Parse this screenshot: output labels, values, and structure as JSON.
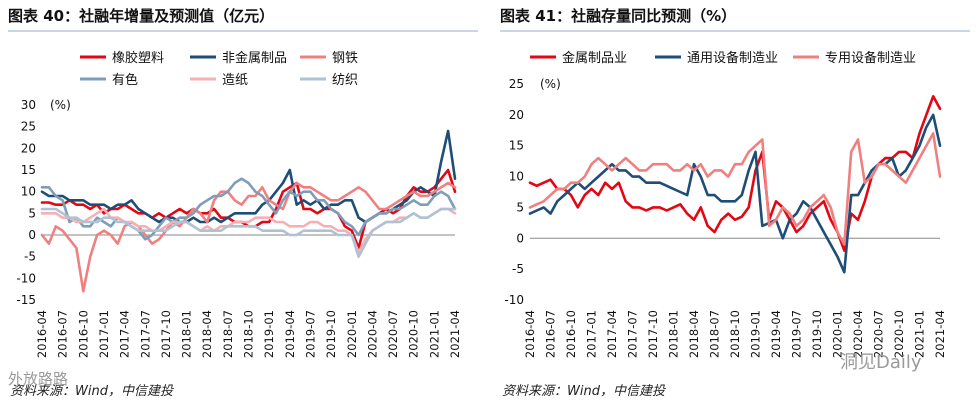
{
  "left": {
    "title": "图表 40：社融年增量及预测值（亿元）",
    "source": "资料来源：Wind，中信建投"
  },
  "right": {
    "title": "图表 41：社融存量同比预测（%）",
    "source": "资料来源：Wind，中信建投"
  },
  "watermarks": {
    "left": "外放路路",
    "right": "洞见Daily"
  },
  "chart_data": [
    {
      "type": "line",
      "title": "图表 40：社融年增量及预测值（亿元）",
      "ylabel": "(%)",
      "ylim": [
        -15,
        30
      ],
      "yticks": [
        -15,
        -10,
        -5,
        0,
        5,
        10,
        15,
        20,
        25,
        30
      ],
      "x": [
        "2016-04",
        "2016-05",
        "2016-06",
        "2016-07",
        "2016-08",
        "2016-09",
        "2016-10",
        "2016-11",
        "2016-12",
        "2017-01",
        "2017-02",
        "2017-03",
        "2017-04",
        "2017-05",
        "2017-06",
        "2017-07",
        "2017-08",
        "2017-09",
        "2017-10",
        "2017-11",
        "2017-12",
        "2018-01",
        "2018-02",
        "2018-03",
        "2018-04",
        "2018-05",
        "2018-06",
        "2018-07",
        "2018-08",
        "2018-09",
        "2018-10",
        "2018-11",
        "2018-12",
        "2019-01",
        "2019-02",
        "2019-03",
        "2019-04",
        "2019-05",
        "2019-06",
        "2019-07",
        "2019-08",
        "2019-09",
        "2019-10",
        "2019-11",
        "2019-12",
        "2020-01",
        "2020-02",
        "2020-03",
        "2020-04",
        "2020-05",
        "2020-06",
        "2020-07",
        "2020-08",
        "2020-09",
        "2020-10",
        "2020-11",
        "2020-12",
        "2021-01",
        "2021-02",
        "2021-03",
        "2021-04"
      ],
      "xticks": [
        "2016-04",
        "2016-07",
        "2016-10",
        "2017-01",
        "2017-04",
        "2017-07",
        "2017-10",
        "2018-01",
        "2018-04",
        "2018-07",
        "2018-10",
        "2019-01",
        "2019-04",
        "2019-07",
        "2019-10",
        "2020-01",
        "2020-04",
        "2020-07",
        "2020-10",
        "2021-01",
        "2021-04"
      ],
      "series": [
        {
          "name": "橡胶塑料",
          "color": "#e30613",
          "values": [
            7.5,
            7.5,
            7,
            7,
            8,
            7,
            7,
            6,
            7,
            5,
            6,
            6,
            7,
            6,
            5,
            5,
            4,
            5,
            4,
            5,
            6,
            5,
            6,
            5,
            5,
            6,
            4,
            4,
            3,
            3,
            2,
            2,
            3,
            3,
            6,
            10,
            11,
            12,
            6,
            6,
            5,
            6,
            6,
            5,
            2,
            1,
            -3,
            3,
            4,
            5,
            6,
            5,
            6,
            9,
            11,
            10,
            10,
            11,
            13,
            15,
            10
          ]
        },
        {
          "name": "非金属制品",
          "color": "#1e4d78",
          "values": [
            10,
            9,
            9,
            9,
            8,
            8,
            8,
            7,
            7,
            7,
            6,
            7,
            7,
            8,
            6,
            5,
            4,
            3,
            4,
            4,
            3,
            3,
            4,
            3,
            3,
            4,
            3,
            4,
            5,
            5,
            5,
            5,
            7,
            8,
            10,
            12,
            15,
            7,
            8,
            7,
            8,
            6,
            7,
            7,
            8,
            8,
            4,
            3,
            4,
            5,
            5,
            6,
            7,
            8,
            10,
            11,
            10,
            9,
            17,
            24,
            13
          ]
        },
        {
          "name": "钢铁",
          "color": "#f08080",
          "values": [
            0,
            -2,
            2,
            1,
            -1,
            -3,
            -13,
            -5,
            0,
            1,
            0,
            -2,
            2,
            3,
            2,
            0,
            -2,
            -1,
            1,
            3,
            2,
            4,
            6,
            5,
            3,
            8,
            10,
            10,
            8,
            7,
            9,
            9,
            11,
            8,
            7,
            6,
            10,
            12,
            11,
            11,
            10,
            9,
            8,
            8,
            9,
            10,
            11,
            10,
            8,
            6,
            6,
            7,
            8,
            9,
            10,
            9,
            9,
            10,
            11,
            12,
            11
          ]
        },
        {
          "name": "有色",
          "color": "#7f9db9",
          "values": [
            11,
            11,
            9,
            8,
            3,
            4,
            2,
            2,
            4,
            3,
            2,
            4,
            3,
            2,
            1,
            -1,
            0,
            2,
            4,
            3,
            4,
            4,
            5,
            7,
            8,
            9,
            9,
            10,
            12,
            13,
            12,
            10,
            9,
            7,
            5,
            8,
            10,
            9,
            10,
            10,
            8,
            8,
            6,
            5,
            3,
            2,
            0,
            3,
            4,
            5,
            5,
            6,
            6,
            7,
            8,
            7,
            7,
            9,
            10,
            9,
            6
          ]
        },
        {
          "name": "造纸",
          "color": "#f4b0b4",
          "values": [
            5,
            5,
            5,
            4,
            4,
            3,
            3,
            4,
            5,
            6,
            4,
            4,
            3,
            3,
            2,
            2,
            1,
            1,
            2,
            3,
            3,
            3,
            2,
            1,
            2,
            1,
            2,
            2,
            3,
            3,
            3,
            4,
            4,
            4,
            3,
            3,
            2,
            2,
            2,
            3,
            3,
            2,
            2,
            1,
            1,
            0,
            -4,
            -1,
            1,
            2,
            3,
            3,
            4,
            4,
            5,
            4,
            4,
            5,
            6,
            6,
            5
          ]
        },
        {
          "name": "纺织",
          "color": "#aec2d6",
          "values": [
            6,
            6,
            6,
            5,
            4,
            4,
            3,
            3,
            3,
            4,
            4,
            3,
            3,
            2,
            1,
            1,
            1,
            1,
            1,
            2,
            3,
            3,
            2,
            1,
            1,
            1,
            1,
            2,
            2,
            2,
            2,
            2,
            1,
            1,
            1,
            1,
            0,
            0,
            1,
            1,
            1,
            1,
            1,
            0,
            0,
            0,
            -5,
            -2,
            1,
            2,
            3,
            3,
            3,
            4,
            5,
            4,
            4,
            5,
            6,
            6,
            6
          ]
        }
      ]
    },
    {
      "type": "line",
      "title": "图表 41：社融存量同比预测（%）",
      "ylabel": "(%)",
      "ylim": [
        -10,
        25
      ],
      "yticks": [
        -10,
        -5,
        0,
        5,
        10,
        15,
        20,
        25
      ],
      "x": [
        "2016-04",
        "2016-05",
        "2016-06",
        "2016-07",
        "2016-08",
        "2016-09",
        "2016-10",
        "2016-11",
        "2016-12",
        "2017-01",
        "2017-02",
        "2017-03",
        "2017-04",
        "2017-05",
        "2017-06",
        "2017-07",
        "2017-08",
        "2017-09",
        "2017-10",
        "2017-11",
        "2017-12",
        "2018-01",
        "2018-02",
        "2018-03",
        "2018-04",
        "2018-05",
        "2018-06",
        "2018-07",
        "2018-08",
        "2018-09",
        "2018-10",
        "2018-11",
        "2018-12",
        "2019-01",
        "2019-02",
        "2019-03",
        "2019-04",
        "2019-05",
        "2019-06",
        "2019-07",
        "2019-08",
        "2019-09",
        "2019-10",
        "2019-11",
        "2019-12",
        "2020-01",
        "2020-02",
        "2020-03",
        "2020-04",
        "2020-05",
        "2020-06",
        "2020-07",
        "2020-08",
        "2020-09",
        "2020-10",
        "2020-11",
        "2020-12",
        "2021-01",
        "2021-02",
        "2021-03",
        "2021-04"
      ],
      "xticks": [
        "2016-04",
        "2016-07",
        "2016-10",
        "2017-01",
        "2017-04",
        "2017-07",
        "2017-10",
        "2018-01",
        "2018-04",
        "2018-07",
        "2018-10",
        "2019-01",
        "2019-04",
        "2019-07",
        "2019-10",
        "2020-01",
        "2020-04",
        "2020-07",
        "2020-10",
        "2021-01",
        "2021-04"
      ],
      "series": [
        {
          "name": "金属制品业",
          "color": "#e30613",
          "values": [
            9,
            8.5,
            9,
            9.5,
            8,
            8,
            7,
            5,
            7,
            8,
            7,
            9,
            8,
            9,
            6,
            5,
            5,
            4.5,
            5,
            5,
            4.5,
            5,
            5.5,
            4,
            3,
            5,
            2,
            1,
            3,
            4,
            3,
            3.5,
            5,
            11,
            14,
            3,
            6,
            5,
            3,
            1,
            2,
            4,
            5,
            6,
            3,
            1,
            -2,
            4,
            3,
            6,
            10,
            12,
            13,
            13,
            14,
            14,
            13,
            17,
            20,
            23,
            21
          ]
        },
        {
          "name": "通用设备制造业",
          "color": "#1e4d78",
          "values": [
            4,
            4.5,
            5,
            4,
            6,
            7,
            8,
            9,
            8,
            9,
            10,
            11,
            12,
            11,
            11,
            10,
            10,
            9,
            9,
            9,
            8.5,
            8,
            7.5,
            7,
            12,
            10,
            7,
            7,
            6,
            6,
            6,
            7,
            11,
            14,
            2,
            2.5,
            3,
            0,
            3,
            4,
            6,
            5,
            3,
            1,
            -1,
            -3,
            -5.5,
            7,
            7,
            9,
            11,
            12,
            12,
            13,
            10,
            11,
            13,
            15,
            18,
            20,
            15
          ]
        },
        {
          "name": "专用设备制造业",
          "color": "#f08080",
          "values": [
            5,
            5.5,
            6,
            7,
            8,
            8,
            9,
            9,
            10,
            12,
            13,
            12,
            11,
            12,
            13,
            12,
            11,
            11,
            12,
            12,
            12,
            11,
            11,
            12,
            11,
            12,
            10,
            11,
            11,
            10,
            12,
            12,
            14,
            15,
            16,
            2,
            3,
            5,
            4,
            2,
            3,
            5,
            6,
            7,
            5,
            1,
            -1,
            14,
            16,
            9,
            10,
            12,
            12,
            11,
            10,
            9,
            11,
            13,
            15,
            17,
            10
          ]
        }
      ]
    }
  ]
}
